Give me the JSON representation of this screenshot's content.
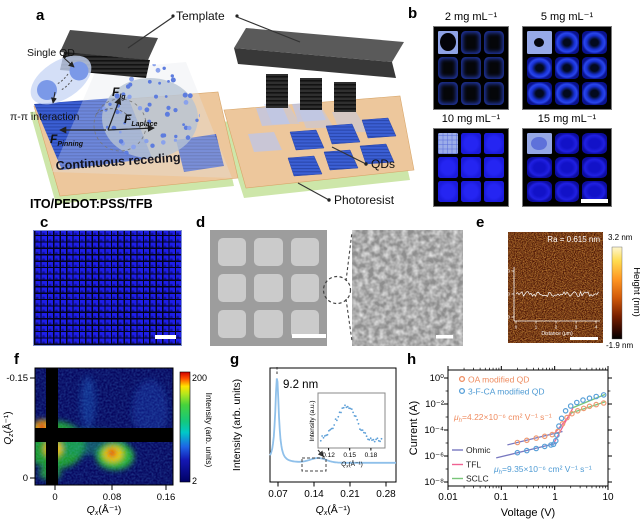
{
  "a": {
    "label": "a",
    "template": "Template",
    "single_qd": "Single QD",
    "pi": "π-π interaction",
    "f_lg": {
      "f": "F",
      "sub": "lg"
    },
    "f_laplace": {
      "f": "F",
      "sub": "Laplace"
    },
    "f_pinning": {
      "f": "F",
      "sub": "Pinning"
    },
    "receding": "Continuous receding",
    "substrate": "ITO/PEDOT:PSS/TFB",
    "qds": "QDs",
    "photoresist": "Photoresist"
  },
  "b": {
    "label": "b",
    "titles": [
      "2 mg mL⁻¹",
      "5 mg mL⁻¹",
      "10 mg mL⁻¹",
      "15 mg mL⁻¹"
    ]
  },
  "c": {
    "label": "c"
  },
  "d": {
    "label": "d"
  },
  "e": {
    "label": "e",
    "ra": "Ra = 0.615 nm",
    "cb_max": "3.2 nm",
    "cb_min": "-1.9 nm",
    "cb_label": "Height (nm)",
    "inset": {
      "ylabel": "Height (nm)",
      "xlabel": "Distance (μm)",
      "yticks": [
        "10",
        "0",
        "-10"
      ],
      "xticks": [
        "0",
        "1",
        "2",
        "3",
        "4"
      ]
    }
  },
  "f": {
    "label": "f",
    "ylabel": {
      "main": "Q",
      "sub": "z",
      "rest": "(Å⁻¹)"
    },
    "xlabel": {
      "main": "Q",
      "sub": "x",
      "rest": "(Å⁻¹)"
    },
    "ytick_top": "-0.15",
    "ytick_bottom": "0",
    "xticks": [
      "0",
      "0.08",
      "0.16"
    ],
    "cb_max": "200",
    "cb_min": "2",
    "cb_label": "Intensity (arb. units)"
  },
  "g": {
    "label": "g",
    "ylabel": "Intensity (arb. units)",
    "xlabel": {
      "main": "Q",
      "sub": "x",
      "rest": "(Å⁻¹)"
    },
    "xticks": [
      "0.07",
      "0.14",
      "0.21",
      "0.28"
    ],
    "peak_label": "9.2 nm",
    "inset": {
      "ylabel": "Intensity (a.u.)",
      "xlabel": {
        "main": "Q",
        "sub": "x",
        "rest": "(Å⁻¹)"
      },
      "xticks": [
        "0.12",
        "0.15",
        "0.18"
      ]
    }
  },
  "h": {
    "label": "h",
    "ylabel": "Current (A)",
    "xlabel": "Voltage (V)",
    "yticks": [
      "10⁰",
      "10⁻²",
      "10⁻⁴",
      "10⁻⁶",
      "10⁻⁸"
    ],
    "xticks": [
      "0.01",
      "0.1",
      "1",
      "10"
    ],
    "legend": [
      "OA modified QD",
      "3-F-CA modified QD"
    ],
    "mu_oa": {
      "mu": "μ",
      "sub": "h",
      "rest": "=4.22×10⁻⁶ cm² V⁻¹ s⁻¹"
    },
    "mu_fca": {
      "mu": "μ",
      "sub": "h",
      "rest": "=9.35×10⁻⁶ cm² V⁻¹ s⁻¹"
    },
    "fit_legend": [
      "Ohmic",
      "TFL",
      "SCLC"
    ]
  },
  "colors": {
    "qd_blue": "#1a1ae8",
    "lead_square": "#93a7e6",
    "oa_orange": "#ef8c60",
    "fca_blue": "#4f9bd4",
    "ohmic": "#7878c0",
    "tfl": "#f06292",
    "sclc": "#79c579",
    "g_curve": "#8fc0ea"
  },
  "chart_data": [
    {
      "id": "f",
      "type": "heatmap",
      "xlabel": "Qx(Å⁻¹)",
      "ylabel": "Qz(Å⁻¹)",
      "xticks": [
        0,
        0.08,
        0.16
      ],
      "yticks": [
        -0.15,
        0
      ],
      "colorbar": {
        "label": "Intensity (arb. units)",
        "min": 2,
        "max": 200
      },
      "hot_spots_qx": [
        0,
        0.065
      ]
    },
    {
      "id": "g",
      "type": "line",
      "xlabel": "Qx(Å⁻¹)",
      "ylabel": "Intensity (arb. units)",
      "x_range": [
        0.054,
        0.3
      ],
      "xticks": [
        0.07,
        0.14,
        0.21,
        0.28
      ],
      "peak": {
        "q": 0.068,
        "label": "9.2 nm"
      },
      "shoulder_q": 0.148,
      "inset": {
        "xlabel": "Qx(Å⁻¹)",
        "ylabel": "Intensity (a.u.)",
        "xticks": [
          0.12,
          0.15,
          0.18
        ],
        "peak_q": 0.145,
        "x_range": [
          0.105,
          0.2
        ]
      }
    },
    {
      "id": "h",
      "type": "scatter",
      "xscale": "log",
      "yscale": "log",
      "xlabel": "Voltage (V)",
      "ylabel": "Current (A)",
      "xlim": [
        0.01,
        10
      ],
      "ylim": [
        1e-08,
        1
      ],
      "series": [
        {
          "name": "OA modified QD",
          "color": "#ef9a72",
          "v": [
            0.2,
            0.3,
            0.45,
            0.65,
            0.9,
            1.15,
            1.4,
            1.7,
            2.1,
            2.7,
            3.5,
            4.5,
            6,
            8.3
          ],
          "i": [
            1.1e-05,
            1.6e-05,
            2.4e-05,
            3.3e-05,
            4.4e-05,
            8e-05,
            0.0003,
            0.0009,
            0.0018,
            0.003,
            0.0046,
            0.0066,
            0.009,
            0.012
          ]
        },
        {
          "name": "3-F-CA modified QD",
          "color": "#58a0d8",
          "v": [
            0.2,
            0.3,
            0.45,
            0.65,
            0.85,
            0.95,
            1.05,
            1.1,
            1.2,
            1.35,
            1.6,
            2,
            2.6,
            3.4,
            4.5,
            6,
            8.3
          ],
          "i": [
            1.8e-06,
            2.6e-06,
            3.8e-06,
            5.5e-06,
            7e-06,
            8e-06,
            1.5e-05,
            4e-05,
            0.0002,
            0.0008,
            0.003,
            0.007,
            0.013,
            0.02,
            0.028,
            0.038,
            0.05
          ]
        }
      ],
      "fits": [
        {
          "name": "Ohmic",
          "color": "#7878c0",
          "segments": [
            [
              0.13,
              7.2e-06,
              1.4,
              7.7e-05
            ],
            [
              0.08,
              7.2e-07,
              1.1,
              9.9e-06
            ]
          ]
        },
        {
          "name": "TFL",
          "color": "#f06292",
          "segments": [
            [
              1.0,
              5.7e-05,
              2.05,
              0.0019
            ],
            [
              0.98,
              1.1e-05,
              2.2,
              0.0048
            ]
          ]
        },
        {
          "name": "SCLC",
          "color": "#79c579",
          "segments": [
            [
              2.0,
              0.002,
              8.8,
              0.0145
            ],
            [
              2.15,
              0.005,
              8.8,
              0.054
            ]
          ]
        }
      ],
      "annotations": [
        "μh=4.22×10⁻⁶ cm² V⁻¹ s⁻¹",
        "μh=9.35×10⁻⁶ cm² V⁻¹ s⁻¹"
      ]
    }
  ]
}
